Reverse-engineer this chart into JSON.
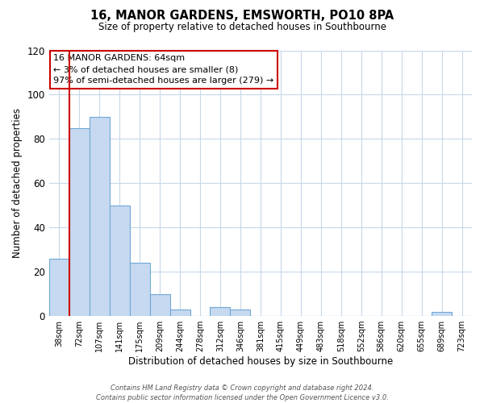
{
  "title": "16, MANOR GARDENS, EMSWORTH, PO10 8PA",
  "subtitle": "Size of property relative to detached houses in Southbourne",
  "xlabel": "Distribution of detached houses by size in Southbourne",
  "ylabel": "Number of detached properties",
  "bar_labels": [
    "38sqm",
    "72sqm",
    "107sqm",
    "141sqm",
    "175sqm",
    "209sqm",
    "244sqm",
    "278sqm",
    "312sqm",
    "346sqm",
    "381sqm",
    "415sqm",
    "449sqm",
    "483sqm",
    "518sqm",
    "552sqm",
    "586sqm",
    "620sqm",
    "655sqm",
    "689sqm",
    "723sqm"
  ],
  "bar_values": [
    26,
    85,
    90,
    50,
    24,
    10,
    3,
    0,
    4,
    3,
    0,
    0,
    0,
    0,
    0,
    0,
    0,
    0,
    0,
    2,
    0
  ],
  "bar_color_fill": "#c6d9f0",
  "bar_color_edge": "#6fa8d6",
  "highlight_color": "#cc0000",
  "ylim": [
    0,
    120
  ],
  "yticks": [
    0,
    20,
    40,
    60,
    80,
    100,
    120
  ],
  "annotation_title": "16 MANOR GARDENS: 64sqm",
  "annotation_line1": "← 3% of detached houses are smaller (8)",
  "annotation_line2": "97% of semi-detached houses are larger (279) →",
  "annotation_box_color": "#ffffff",
  "annotation_border_color": "#cc0000",
  "footer_line1": "Contains HM Land Registry data © Crown copyright and database right 2024.",
  "footer_line2": "Contains public sector information licensed under the Open Government Licence v3.0.",
  "background_color": "#ffffff",
  "grid_color": "#c8d8ea",
  "vertical_line_bar_index": 0.5
}
